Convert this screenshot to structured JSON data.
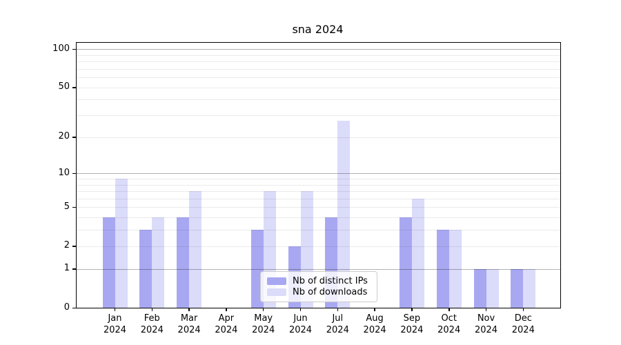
{
  "title": "sna 2024",
  "chart_data": {
    "type": "bar",
    "title": "sna 2024",
    "categories": [
      "Jan",
      "Feb",
      "Mar",
      "Apr",
      "May",
      "Jun",
      "Jul",
      "Aug",
      "Sep",
      "Oct",
      "Nov",
      "Dec"
    ],
    "year_label": "2024",
    "series": [
      {
        "name": "Nb of distinct IPs",
        "color": "#a8a8f2",
        "values": [
          4,
          3,
          4,
          0,
          3,
          2,
          4,
          0,
          4,
          3,
          1,
          1
        ]
      },
      {
        "name": "Nb of downloads",
        "color": "#dbdbfa",
        "values": [
          9,
          4,
          7,
          0,
          7,
          7,
          27,
          0,
          6,
          3,
          1,
          1
        ]
      }
    ],
    "xlabel": "",
    "ylabel": "",
    "y_scale": "log10(1+value)",
    "ylim": [
      0,
      112
    ],
    "y_tick_values": [
      0,
      1,
      2,
      5,
      10,
      20,
      50,
      100
    ],
    "y_tick_labels": [
      "0",
      "1",
      "2",
      "5",
      "10",
      "20",
      "50",
      "100"
    ],
    "y_major_gridlines": [
      1,
      10,
      100
    ],
    "y_minor_gridlines": [
      2,
      3,
      4,
      5,
      6,
      7,
      8,
      9,
      20,
      30,
      40,
      50,
      60,
      70,
      80,
      90
    ],
    "grid": true,
    "legend_position": "bottom-center-inside",
    "colors": {
      "bar_distinct_ips": "#a8a8f2",
      "bar_downloads": "#dbdbfa",
      "major_gridline": "#b3b3b3",
      "minor_gridline": "#ebebeb",
      "axis": "#000000",
      "background": "#ffffff"
    }
  },
  "legend": {
    "items": [
      {
        "label": "Nb of distinct IPs"
      },
      {
        "label": "Nb of downloads"
      }
    ]
  }
}
